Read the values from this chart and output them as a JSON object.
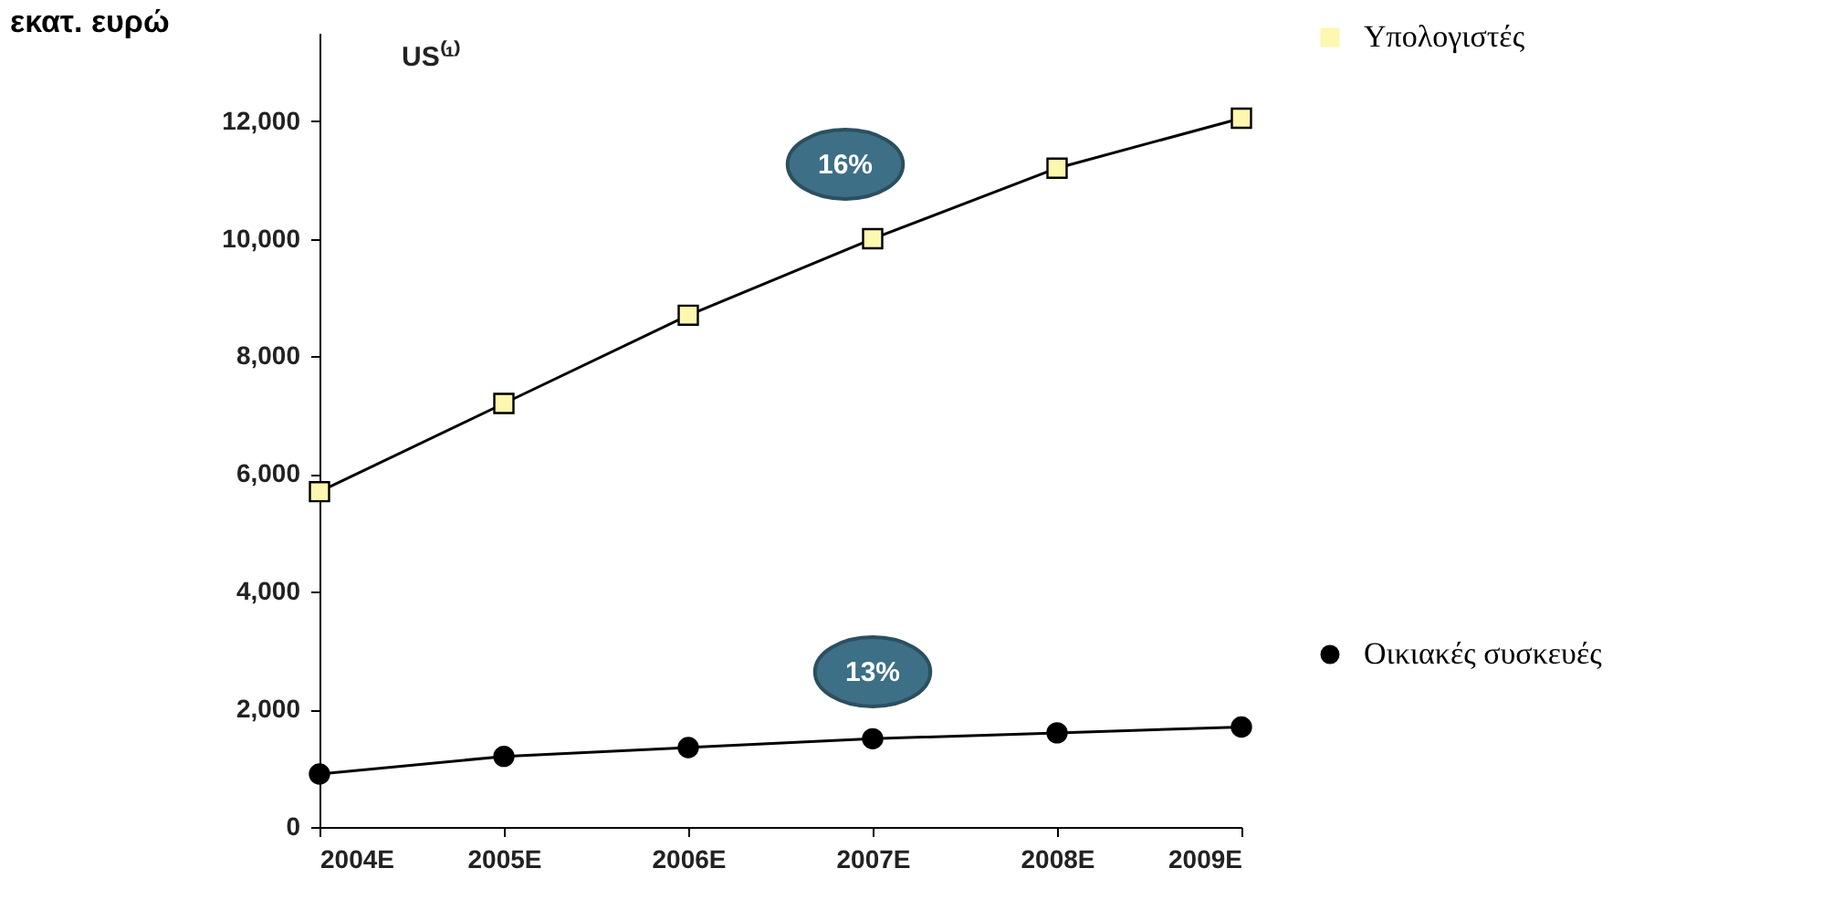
{
  "chart_data": {
    "type": "line",
    "title": "US⁽¹⁾",
    "ylabel": "εκατ. ευρώ",
    "categories": [
      "2004E",
      "2005E",
      "2006E",
      "2007E",
      "2008E",
      "2009E"
    ],
    "ylim": [
      0,
      13500
    ],
    "yticks": [
      0,
      {
        "value": 2000,
        "label": "2,000"
      },
      {
        "value": 4000,
        "label": "4,000"
      },
      {
        "value": 6000,
        "label": "6,000"
      },
      {
        "value": 8000,
        "label": "8,000"
      },
      {
        "value": 10000,
        "label": "10,000"
      },
      {
        "value": 12000,
        "label": "12,000"
      }
    ],
    "legend": "right",
    "annotations": [
      "16%",
      "13%"
    ],
    "series": [
      {
        "name": "Υπολογιστές",
        "color": "#fdf7b0",
        "marker": "square",
        "values": [
          5700,
          7200,
          8700,
          10000,
          11200,
          12050
        ]
      },
      {
        "name": "Οικιακές συσκευές",
        "color": "#000000",
        "marker": "circle",
        "values": [
          900,
          1200,
          1350,
          1500,
          1600,
          1700
        ]
      }
    ]
  }
}
